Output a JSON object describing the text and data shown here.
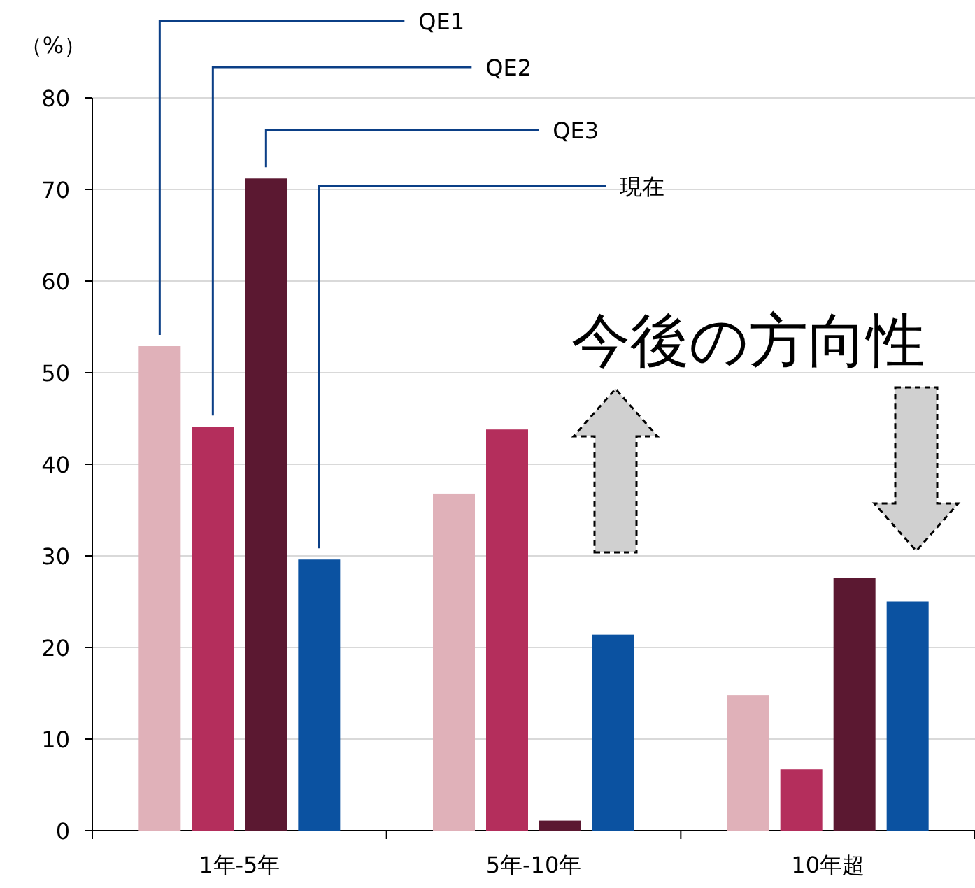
{
  "chart_data": {
    "type": "bar",
    "ylabel": "（%）",
    "categories": [
      "1年-5年",
      "5年-10年",
      "10年超"
    ],
    "series": [
      {
        "name": "QE1",
        "color": "#e0b1b9",
        "values": [
          52.9,
          36.8,
          14.8
        ]
      },
      {
        "name": "QE2",
        "color": "#b42e5c",
        "values": [
          44.1,
          43.8,
          6.7
        ]
      },
      {
        "name": "QE3",
        "color": "#5b1831",
        "values": [
          71.2,
          1.1,
          27.6
        ]
      },
      {
        "name": "現在",
        "color": "#0b52a1",
        "values": [
          29.6,
          21.4,
          25.0
        ]
      }
    ],
    "ylim": [
      0,
      80
    ],
    "yticks": [
      0,
      10,
      20,
      30,
      40,
      50,
      60,
      70,
      80
    ],
    "grid": "y",
    "annotations": [
      "今後の方向性"
    ]
  }
}
